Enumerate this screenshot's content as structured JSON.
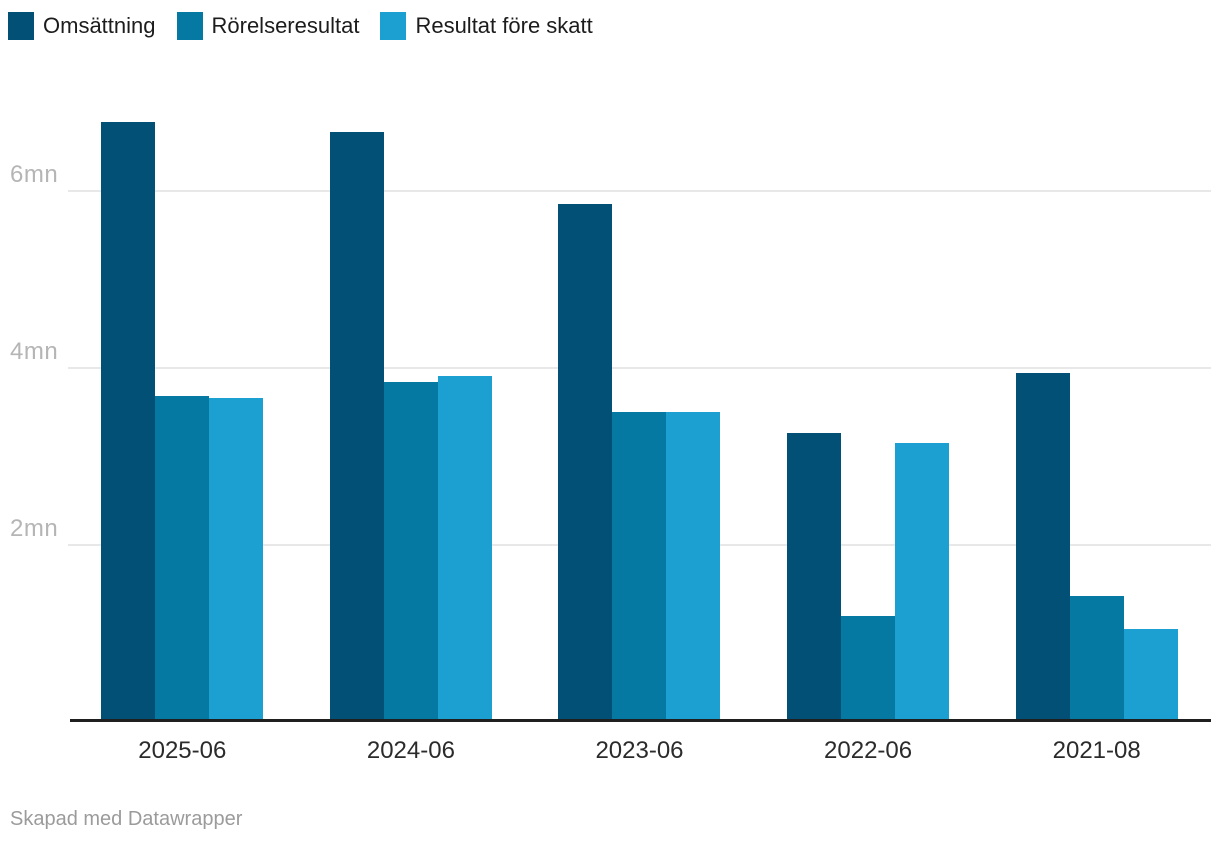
{
  "chart_data": {
    "type": "bar",
    "title": "",
    "categories": [
      "2025-06",
      "2024-06",
      "2023-06",
      "2022-06",
      "2021-08"
    ],
    "series": [
      {
        "name": "Omsättning",
        "color": "#025076",
        "values": [
          6.78,
          6.67,
          5.86,
          3.27,
          3.95
        ]
      },
      {
        "name": "Rörelseresultat",
        "color": "#0679a3",
        "values": [
          3.69,
          3.84,
          3.51,
          1.2,
          1.43
        ]
      },
      {
        "name": "Resultat före skatt",
        "color": "#1c9fd1",
        "values": [
          3.66,
          3.91,
          3.5,
          3.15,
          1.05
        ]
      }
    ],
    "unit": "mn",
    "yticks": [
      {
        "value": 2,
        "label": "2mn"
      },
      {
        "value": 4,
        "label": "4mn"
      },
      {
        "value": 6,
        "label": "6mn"
      }
    ],
    "ylim": [
      0,
      7.62
    ],
    "grid": "horizontal",
    "legend_position": "top-left",
    "colors": {
      "gridline": "#e8e8e8",
      "axis_line": "#1f1f1f",
      "tick_label": "#b5b5b5",
      "category_label": "#2b2b2b",
      "legend_label": "#1c1c1c",
      "credit": "#9b9b9b"
    }
  },
  "footer": {
    "credit": "Skapad med Datawrapper"
  }
}
